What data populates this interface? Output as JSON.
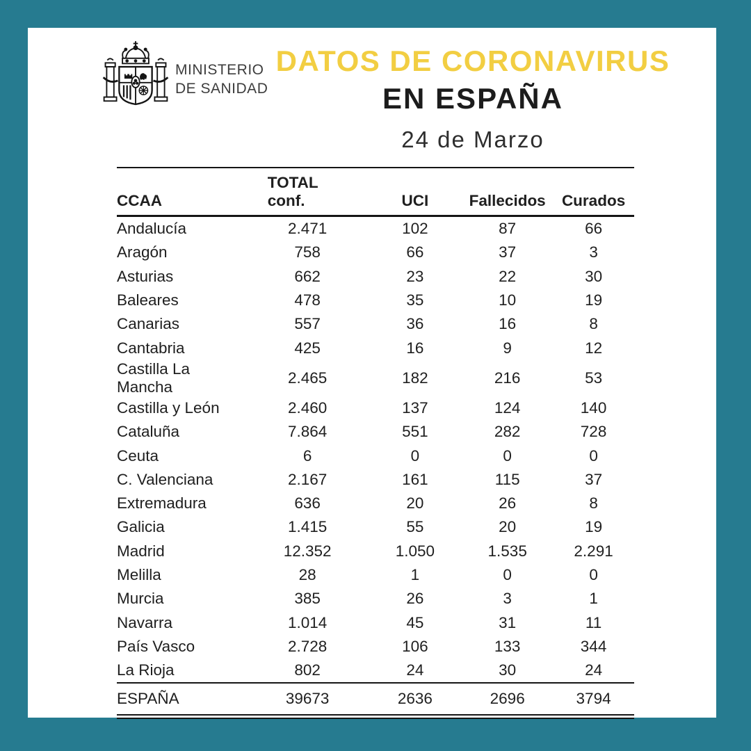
{
  "header": {
    "ministry": {
      "line1": "MINISTERIO",
      "line2": "DE SANIDAD"
    },
    "title_line1": "DATOS DE CORONAVIRUS",
    "title_line2": "EN ESPAÑA",
    "date": "24 de Marzo",
    "logo_icon": "spain-coat-of-arms-icon"
  },
  "colors": {
    "background_teal": "#267B90",
    "card_white": "#FFFFFF",
    "accent_yellow": "#F2CE42",
    "title_black": "#1C1C1C",
    "table_line_black": "#151515"
  },
  "table": {
    "columns": {
      "ccaa": "CCAA",
      "conf_line1": "TOTAL",
      "conf_line2": "conf.",
      "uci": "UCI",
      "fallecidos": "Fallecidos",
      "curados": "Curados"
    },
    "rows": [
      {
        "ccaa": "Andalucía",
        "conf": "2.471",
        "uci": "102",
        "fallecidos": "87",
        "curados": "66"
      },
      {
        "ccaa": "Aragón",
        "conf": "758",
        "uci": "66",
        "fallecidos": "37",
        "curados": "3"
      },
      {
        "ccaa": "Asturias",
        "conf": "662",
        "uci": "23",
        "fallecidos": "22",
        "curados": "30"
      },
      {
        "ccaa": "Baleares",
        "conf": "478",
        "uci": "35",
        "fallecidos": "10",
        "curados": "19"
      },
      {
        "ccaa": "Canarias",
        "conf": "557",
        "uci": "36",
        "fallecidos": "16",
        "curados": "8"
      },
      {
        "ccaa": "Cantabria",
        "conf": "425",
        "uci": "16",
        "fallecidos": "9",
        "curados": "12"
      },
      {
        "ccaa": "Castilla La Mancha",
        "conf": "2.465",
        "uci": "182",
        "fallecidos": "216",
        "curados": "53"
      },
      {
        "ccaa": "Castilla y León",
        "conf": "2.460",
        "uci": "137",
        "fallecidos": "124",
        "curados": "140"
      },
      {
        "ccaa": "Cataluña",
        "conf": "7.864",
        "uci": "551",
        "fallecidos": "282",
        "curados": "728"
      },
      {
        "ccaa": "Ceuta",
        "conf": "6",
        "uci": "0",
        "fallecidos": "0",
        "curados": "0"
      },
      {
        "ccaa": "C. Valenciana",
        "conf": "2.167",
        "uci": "161",
        "fallecidos": "115",
        "curados": "37"
      },
      {
        "ccaa": "Extremadura",
        "conf": "636",
        "uci": "20",
        "fallecidos": "26",
        "curados": "8"
      },
      {
        "ccaa": "Galicia",
        "conf": "1.415",
        "uci": "55",
        "fallecidos": "20",
        "curados": "19"
      },
      {
        "ccaa": "Madrid",
        "conf": "12.352",
        "uci": "1.050",
        "fallecidos": "1.535",
        "curados": "2.291"
      },
      {
        "ccaa": "Melilla",
        "conf": "28",
        "uci": "1",
        "fallecidos": "0",
        "curados": "0"
      },
      {
        "ccaa": "Murcia",
        "conf": "385",
        "uci": "26",
        "fallecidos": "3",
        "curados": "1"
      },
      {
        "ccaa": "Navarra",
        "conf": "1.014",
        "uci": "45",
        "fallecidos": "31",
        "curados": "11"
      },
      {
        "ccaa": "País Vasco",
        "conf": "2.728",
        "uci": "106",
        "fallecidos": "133",
        "curados": "344"
      },
      {
        "ccaa": "La Rioja",
        "conf": "802",
        "uci": "24",
        "fallecidos": "30",
        "curados": "24"
      }
    ],
    "total_row": {
      "ccaa": "ESPAÑA",
      "conf": "39673",
      "uci": "2636",
      "fallecidos": "2696",
      "curados": "3794"
    }
  }
}
